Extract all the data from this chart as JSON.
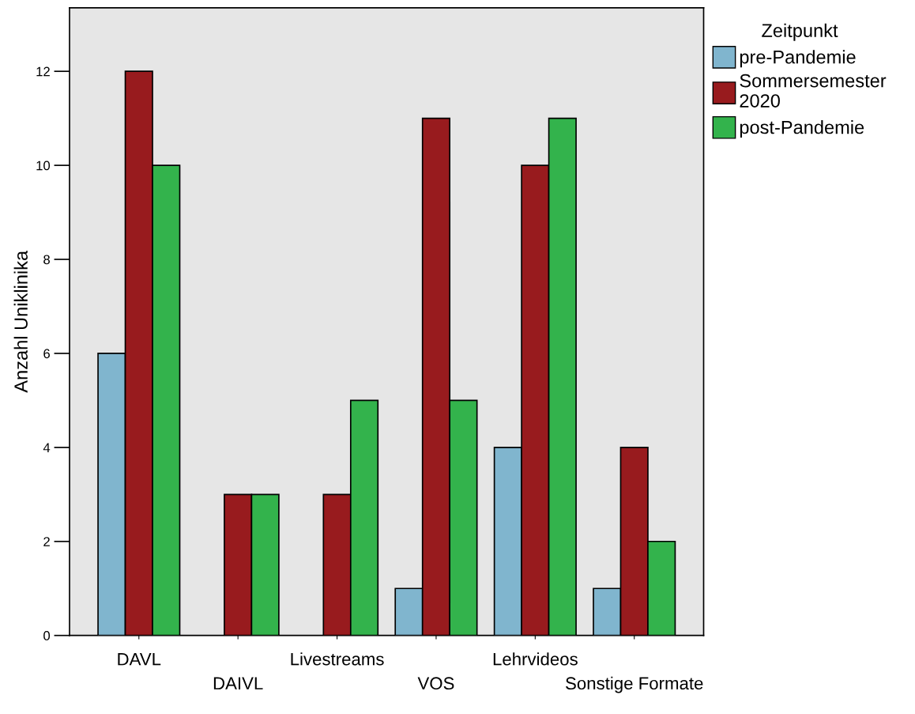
{
  "chart_data": {
    "type": "bar",
    "ylabel": "Anzahl Uniklinika",
    "legend_title": "Zeitpunkt",
    "categories": [
      "DAVL",
      "DAIVL",
      "Livestreams",
      "VOS",
      "Lehrvideos",
      "Sonstige Formate"
    ],
    "series": [
      {
        "name": "pre-Pandemie",
        "color": "#80b5ce",
        "values": [
          6,
          null,
          null,
          1,
          4,
          1
        ]
      },
      {
        "name": "Sommersemester\n2020",
        "color": "#981b1e",
        "values": [
          12,
          3,
          3,
          11,
          10,
          4
        ]
      },
      {
        "name": "post-Pandemie",
        "color": "#33b34c",
        "values": [
          10,
          3,
          5,
          5,
          11,
          2
        ]
      }
    ],
    "ylim": [
      0,
      13.35
    ],
    "yticks": [
      0,
      2,
      4,
      6,
      8,
      10,
      12
    ],
    "grid": false,
    "legend": "right"
  }
}
